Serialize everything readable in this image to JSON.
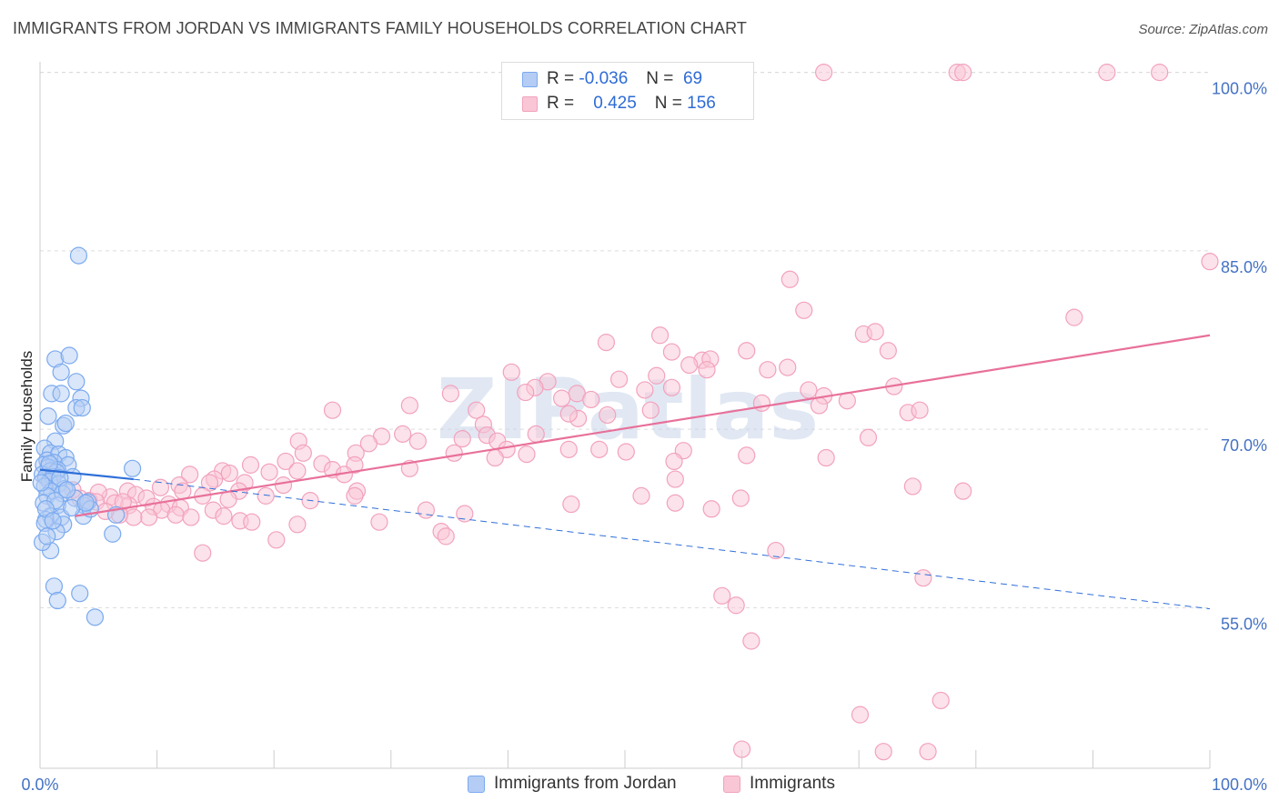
{
  "title": "IMMIGRANTS FROM JORDAN VS IMMIGRANTS FAMILY HOUSEHOLDS CORRELATION CHART",
  "source": "Source: ZipAtlas.com",
  "watermark": "ZIPatlas",
  "colors": {
    "blue": "#7aaaf0",
    "blue_line": "#2f6fd8",
    "pink": "#f2a2bd",
    "pink_line": "#e8709a",
    "tick": "#4472c4"
  },
  "legend": {
    "rows": [
      {
        "r_label": "R =",
        "r_value": "-0.036",
        "n_label": "N =",
        "n_value": "69"
      },
      {
        "r_label": "R =",
        "r_value": "0.425",
        "n_label": "N =",
        "n_value": "156"
      }
    ]
  },
  "bottom_legend": [
    "Immigrants from Jordan",
    "Immigrants"
  ],
  "chart_data": {
    "type": "scatter",
    "xlabel": "",
    "ylabel": "Family Households",
    "x_ticks": [
      "0.0%",
      "100.0%"
    ],
    "y_ticks": [
      "55.0%",
      "70.0%",
      "85.0%",
      "100.0%"
    ],
    "xlim": [
      0,
      100
    ],
    "ylim": [
      41.5,
      101.5
    ],
    "series": [
      {
        "name": "Immigrants from Jordan",
        "r": -0.036,
        "n": 69,
        "trend_solid": [
          [
            0,
            66.6
          ],
          [
            8,
            65.8
          ]
        ],
        "trend_dashed": [
          [
            8,
            65.8
          ],
          [
            100,
            54.9
          ]
        ],
        "points": [
          [
            3.3,
            84.6
          ],
          [
            1.3,
            75.9
          ],
          [
            2.5,
            76.2
          ],
          [
            1.8,
            74.8
          ],
          [
            3.1,
            74.0
          ],
          [
            1.0,
            73.0
          ],
          [
            1.8,
            73.0
          ],
          [
            3.5,
            72.6
          ],
          [
            3.1,
            71.8
          ],
          [
            3.6,
            71.8
          ],
          [
            0.7,
            71.1
          ],
          [
            2.0,
            70.3
          ],
          [
            2.2,
            70.5
          ],
          [
            1.3,
            69.0
          ],
          [
            0.4,
            68.4
          ],
          [
            0.9,
            68.0
          ],
          [
            1.6,
            67.9
          ],
          [
            2.2,
            67.6
          ],
          [
            0.6,
            67.4
          ],
          [
            1.2,
            67.2
          ],
          [
            2.4,
            67.0
          ],
          [
            0.3,
            67.0
          ],
          [
            0.7,
            66.8
          ],
          [
            1.5,
            66.6
          ],
          [
            0.9,
            66.5
          ],
          [
            1.4,
            66.4
          ],
          [
            0.2,
            66.2
          ],
          [
            0.5,
            66.0
          ],
          [
            1.1,
            66.0
          ],
          [
            2.8,
            66.0
          ],
          [
            0.8,
            65.6
          ],
          [
            1.6,
            65.4
          ],
          [
            0.4,
            65.2
          ],
          [
            2.1,
            65.0
          ],
          [
            1.0,
            64.8
          ],
          [
            1.9,
            64.6
          ],
          [
            0.6,
            64.4
          ],
          [
            3.0,
            64.2
          ],
          [
            0.3,
            63.8
          ],
          [
            1.5,
            63.6
          ],
          [
            3.8,
            63.6
          ],
          [
            4.1,
            63.9
          ],
          [
            0.9,
            62.7
          ],
          [
            0.5,
            62.4
          ],
          [
            1.8,
            62.6
          ],
          [
            3.7,
            62.7
          ],
          [
            2.0,
            62.0
          ],
          [
            0.4,
            62.1
          ],
          [
            1.4,
            61.4
          ],
          [
            6.2,
            61.2
          ],
          [
            0.9,
            59.8
          ],
          [
            1.2,
            56.8
          ],
          [
            3.4,
            56.2
          ],
          [
            1.5,
            55.6
          ],
          [
            4.7,
            54.2
          ],
          [
            0.2,
            60.5
          ],
          [
            0.6,
            61.0
          ],
          [
            1.3,
            64.0
          ],
          [
            2.7,
            63.4
          ],
          [
            4.3,
            63.3
          ],
          [
            0.1,
            65.5
          ],
          [
            0.8,
            67.1
          ],
          [
            1.7,
            65.9
          ],
          [
            2.3,
            64.9
          ],
          [
            0.5,
            63.3
          ],
          [
            3.9,
            63.8
          ],
          [
            7.9,
            66.7
          ],
          [
            6.5,
            62.8
          ],
          [
            1.1,
            62.3
          ]
        ]
      },
      {
        "name": "Immigrants",
        "r": 0.425,
        "n": 156,
        "trend": [
          [
            3,
            62.7
          ],
          [
            100,
            77.9
          ]
        ],
        "points": [
          [
            67.0,
            100.0
          ],
          [
            78.4,
            100.0
          ],
          [
            78.9,
            100.0
          ],
          [
            91.2,
            100.0
          ],
          [
            95.7,
            100.0
          ],
          [
            100.0,
            84.1
          ],
          [
            64.1,
            82.6
          ],
          [
            65.3,
            80.0
          ],
          [
            88.4,
            79.4
          ],
          [
            53.0,
            77.9
          ],
          [
            70.4,
            78.0
          ],
          [
            71.4,
            78.2
          ],
          [
            48.4,
            77.3
          ],
          [
            60.4,
            76.6
          ],
          [
            54.0,
            76.5
          ],
          [
            72.5,
            76.6
          ],
          [
            56.6,
            75.8
          ],
          [
            55.5,
            75.4
          ],
          [
            57.3,
            75.9
          ],
          [
            57.0,
            75.0
          ],
          [
            62.2,
            75.0
          ],
          [
            63.9,
            75.2
          ],
          [
            40.3,
            74.8
          ],
          [
            52.7,
            74.5
          ],
          [
            49.5,
            74.2
          ],
          [
            43.4,
            74.0
          ],
          [
            42.3,
            73.5
          ],
          [
            41.5,
            73.1
          ],
          [
            51.7,
            73.3
          ],
          [
            54.0,
            73.5
          ],
          [
            65.7,
            73.3
          ],
          [
            73.0,
            73.6
          ],
          [
            35.1,
            73.0
          ],
          [
            45.9,
            73.0
          ],
          [
            47.1,
            72.5
          ],
          [
            44.6,
            72.6
          ],
          [
            67.0,
            72.8
          ],
          [
            69.0,
            72.4
          ],
          [
            61.7,
            72.2
          ],
          [
            31.6,
            72.0
          ],
          [
            25.0,
            71.6
          ],
          [
            37.3,
            71.6
          ],
          [
            52.2,
            71.6
          ],
          [
            74.2,
            71.4
          ],
          [
            75.2,
            71.6
          ],
          [
            66.6,
            72.0
          ],
          [
            48.5,
            71.2
          ],
          [
            46.0,
            70.9
          ],
          [
            45.2,
            71.3
          ],
          [
            37.9,
            70.4
          ],
          [
            31.0,
            69.6
          ],
          [
            38.2,
            69.5
          ],
          [
            70.8,
            69.3
          ],
          [
            29.2,
            69.4
          ],
          [
            39.1,
            69.0
          ],
          [
            32.3,
            69.0
          ],
          [
            36.1,
            69.2
          ],
          [
            22.1,
            69.0
          ],
          [
            28.1,
            68.8
          ],
          [
            42.4,
            69.6
          ],
          [
            22.5,
            68.0
          ],
          [
            27.0,
            68.0
          ],
          [
            35.4,
            68.0
          ],
          [
            39.9,
            68.3
          ],
          [
            41.6,
            67.9
          ],
          [
            45.2,
            68.3
          ],
          [
            47.8,
            68.3
          ],
          [
            50.1,
            68.1
          ],
          [
            55.0,
            68.2
          ],
          [
            60.4,
            67.8
          ],
          [
            54.2,
            67.3
          ],
          [
            38.9,
            67.6
          ],
          [
            21.0,
            67.3
          ],
          [
            24.1,
            67.1
          ],
          [
            18.0,
            67.0
          ],
          [
            26.9,
            67.0
          ],
          [
            19.6,
            66.4
          ],
          [
            22.0,
            66.5
          ],
          [
            25.0,
            66.6
          ],
          [
            31.6,
            66.7
          ],
          [
            15.6,
            66.5
          ],
          [
            16.2,
            66.3
          ],
          [
            26.0,
            66.2
          ],
          [
            12.8,
            66.2
          ],
          [
            14.9,
            65.8
          ],
          [
            17.5,
            65.5
          ],
          [
            11.9,
            65.3
          ],
          [
            14.5,
            65.5
          ],
          [
            20.8,
            65.3
          ],
          [
            10.3,
            65.1
          ],
          [
            12.2,
            64.8
          ],
          [
            17.0,
            64.8
          ],
          [
            27.1,
            64.8
          ],
          [
            19.3,
            64.4
          ],
          [
            7.5,
            64.8
          ],
          [
            8.2,
            64.5
          ],
          [
            6.0,
            64.3
          ],
          [
            9.1,
            64.2
          ],
          [
            13.9,
            64.4
          ],
          [
            16.1,
            64.1
          ],
          [
            23.1,
            64.0
          ],
          [
            26.9,
            64.4
          ],
          [
            5.0,
            64.7
          ],
          [
            4.2,
            64.0
          ],
          [
            3.4,
            64.2
          ],
          [
            6.4,
            63.8
          ],
          [
            7.6,
            63.6
          ],
          [
            9.7,
            63.5
          ],
          [
            11.0,
            63.7
          ],
          [
            10.4,
            63.2
          ],
          [
            12.0,
            63.4
          ],
          [
            11.6,
            62.8
          ],
          [
            9.3,
            62.6
          ],
          [
            14.8,
            63.2
          ],
          [
            15.7,
            62.7
          ],
          [
            8.0,
            62.6
          ],
          [
            6.8,
            62.8
          ],
          [
            12.9,
            62.6
          ],
          [
            17.1,
            62.3
          ],
          [
            18.1,
            62.2
          ],
          [
            22.0,
            62.0
          ],
          [
            29.0,
            62.2
          ],
          [
            36.3,
            62.9
          ],
          [
            33.0,
            63.2
          ],
          [
            45.4,
            63.7
          ],
          [
            51.4,
            64.4
          ],
          [
            54.3,
            63.8
          ],
          [
            57.4,
            63.3
          ],
          [
            59.9,
            64.2
          ],
          [
            67.2,
            67.6
          ],
          [
            74.6,
            65.2
          ],
          [
            78.9,
            64.8
          ],
          [
            54.3,
            65.8
          ],
          [
            34.3,
            61.4
          ],
          [
            34.7,
            61.0
          ],
          [
            20.2,
            60.7
          ],
          [
            13.9,
            59.6
          ],
          [
            62.9,
            59.8
          ],
          [
            75.5,
            57.5
          ],
          [
            58.3,
            56.0
          ],
          [
            59.5,
            55.2
          ],
          [
            60.8,
            52.2
          ],
          [
            77.0,
            47.2
          ],
          [
            70.1,
            46.0
          ],
          [
            75.9,
            42.9
          ],
          [
            60.0,
            43.1
          ],
          [
            72.1,
            42.9
          ],
          [
            4.8,
            63.9
          ],
          [
            5.6,
            63.1
          ],
          [
            2.8,
            64.9
          ],
          [
            7.1,
            63.9
          ]
        ]
      }
    ]
  }
}
